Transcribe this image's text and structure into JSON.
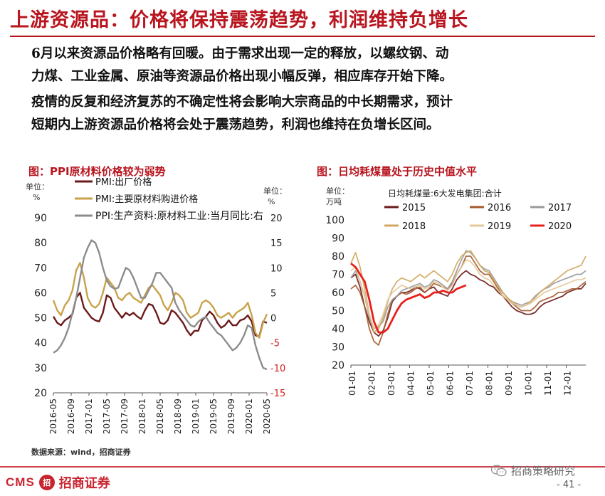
{
  "header": {
    "title": "上游资源品：价格将保持震荡趋势，利润维持负增长"
  },
  "body": {
    "para1": [
      "6月以来资源品价格略有回暖。由于需求出现一定的释放，以螺纹钢、动",
      "力煤、工业金属、原油等资源品价格出现小幅反弹，相应库存开始下降。"
    ],
    "para2": [
      "疫情的反复和经济复苏的不确定性将会影响大宗商品的中长期需求，预计",
      "短期内上游资源品价格将会处于震荡趋势，利润也维持在负增长区间。"
    ]
  },
  "chart_data": [
    {
      "type": "line",
      "title": "图：PPI原材料价格较为弱势",
      "left_unit": [
        "单位：",
        "%"
      ],
      "right_unit": [
        "单位：",
        "%"
      ],
      "left_ylim": [
        20,
        90
      ],
      "left_ticks": [
        "90",
        "80",
        "70",
        "60",
        "50",
        "40",
        "30",
        "20"
      ],
      "right_ylim": [
        -15,
        20
      ],
      "right_ticks": [
        "20",
        "15",
        "10",
        "5",
        "0",
        "-5",
        "-10",
        "-15"
      ],
      "x_ticks": [
        "2016-05",
        "2016-09",
        "2017-01",
        "2017-05",
        "2017-09",
        "2018-01",
        "2018-05",
        "2018-09",
        "2019-01",
        "2019-05",
        "2019-09",
        "2020-01",
        "2020-05"
      ],
      "series": [
        {
          "name": "PMI:出厂价格",
          "axis": "left",
          "color": "#6b1a1a",
          "values": [
            50.5,
            48,
            47,
            49,
            50,
            51.5,
            58,
            60,
            54,
            52,
            50,
            49,
            48.5,
            52,
            59,
            58,
            54,
            52,
            50,
            52,
            51,
            52,
            50.5,
            49.5,
            53,
            55.5,
            55,
            52,
            48,
            47.5,
            49,
            53,
            52,
            50,
            48,
            45,
            43,
            44.8,
            44.8,
            49,
            50.5,
            52.5,
            51,
            48,
            46,
            47,
            49,
            47,
            47,
            49,
            49.5,
            51,
            48.5,
            43,
            42.5,
            48.5,
            48
          ]
        },
        {
          "name": "PMI:主要原材料购进价格",
          "axis": "left",
          "color": "#c9a24b",
          "values": [
            57,
            53,
            51,
            55,
            57,
            61,
            69,
            72,
            66,
            58,
            55,
            54,
            55.5,
            60,
            66,
            64,
            62,
            58,
            57,
            59,
            60,
            58,
            57,
            56,
            59,
            62,
            63,
            61,
            59,
            55,
            53,
            56,
            60,
            59,
            57,
            52,
            50,
            51,
            52,
            56,
            57,
            56,
            54,
            51,
            50,
            51,
            52,
            50,
            52,
            53,
            54,
            56,
            51,
            44,
            42,
            48,
            51.5
          ]
        },
        {
          "name": "PPI:生产资料:原材料工业:当月同比:右",
          "axis": "right",
          "color": "#8c8c8c",
          "values": [
            -7,
            -6.5,
            -5.5,
            -4,
            -2,
            1,
            4,
            8,
            12,
            14,
            15.5,
            15,
            13,
            10,
            7.5,
            6.3,
            5.8,
            6,
            8,
            10,
            9.5,
            8,
            6,
            4,
            4,
            5.5,
            7,
            9,
            9,
            8,
            7,
            6,
            3,
            1.5,
            0.5,
            -0.5,
            -1.5,
            -1.8,
            -0.8,
            -0.2,
            0.2,
            -1,
            -2,
            -3,
            -3.5,
            -4.5,
            -5.5,
            -6.5,
            -6,
            -5,
            -3.5,
            -1.5,
            -2,
            -5.5,
            -8,
            -10,
            -10.3
          ]
        }
      ]
    },
    {
      "type": "line",
      "title": "图：日均耗煤量处于历史中值水平",
      "unit": [
        "单位：",
        "万吨"
      ],
      "subtitle": "日均耗煤量:6大发电集团:合计",
      "ylim": [
        20,
        100
      ],
      "y_ticks": [
        "100",
        "90",
        "80",
        "70",
        "60",
        "50",
        "40",
        "30",
        "20"
      ],
      "x_ticks": [
        "01-01",
        "02-01",
        "03-01",
        "04-01",
        "05-01",
        "06-01",
        "07-01",
        "08-01",
        "09-01",
        "10-01",
        "11-01",
        "12-01"
      ],
      "series": [
        {
          "name": "2015",
          "color": "#6b1a1a",
          "values": [
            68,
            70,
            63,
            52,
            44,
            38,
            36,
            39,
            46,
            55,
            58,
            60,
            60,
            61,
            63,
            62,
            60,
            62,
            63,
            60,
            59,
            58,
            62,
            67,
            70,
            72,
            70,
            69,
            67,
            66,
            64,
            63,
            60,
            58,
            55,
            52,
            50,
            49,
            48,
            48,
            49,
            52,
            54,
            55,
            56,
            57,
            58,
            60,
            61,
            62,
            62,
            65
          ]
        },
        {
          "name": "2016",
          "color": "#a65a2e",
          "values": [
            62,
            64,
            60,
            52,
            40,
            33,
            31,
            38,
            48,
            56,
            58,
            60,
            59,
            60,
            62,
            63,
            60,
            62,
            65,
            64,
            63,
            62,
            65,
            70,
            74,
            80,
            80,
            76,
            72,
            70,
            70,
            66,
            62,
            58,
            56,
            54,
            52,
            50,
            50,
            50,
            52,
            55,
            56,
            57,
            58,
            60,
            60,
            61,
            62,
            62,
            64,
            66
          ]
        },
        {
          "name": "2017",
          "color": "#9a9a9a",
          "values": [
            68,
            72,
            66,
            58,
            46,
            40,
            41,
            44,
            52,
            56,
            58,
            61,
            62,
            63,
            64,
            65,
            63,
            64,
            67,
            66,
            64,
            62,
            66,
            72,
            78,
            83,
            82,
            79,
            75,
            73,
            72,
            68,
            64,
            60,
            57,
            55,
            54,
            53,
            54,
            55,
            58,
            60,
            62,
            63,
            65,
            66,
            67,
            68,
            69,
            70,
            70,
            72
          ]
        },
        {
          "name": "2018",
          "color": "#d2a860",
          "values": [
            76,
            82,
            74,
            62,
            48,
            38,
            40,
            46,
            55,
            62,
            66,
            68,
            67,
            66,
            68,
            70,
            68,
            70,
            72,
            70,
            68,
            66,
            70,
            76,
            80,
            82,
            83,
            79,
            75,
            72,
            71,
            67,
            63,
            60,
            57,
            55,
            53,
            52,
            53,
            55,
            57,
            60,
            62,
            64,
            66,
            68,
            70,
            72,
            73,
            74,
            75,
            80
          ]
        },
        {
          "name": "2019",
          "color": "#e4c99a",
          "values": [
            72,
            74,
            66,
            58,
            48,
            40,
            42,
            48,
            56,
            60,
            62,
            64,
            63,
            62,
            63,
            64,
            62,
            63,
            66,
            65,
            63,
            61,
            64,
            70,
            74,
            78,
            77,
            74,
            70,
            68,
            67,
            64,
            61,
            58,
            56,
            54,
            53,
            52,
            53,
            54,
            56,
            58,
            60,
            61,
            62,
            63,
            64,
            65,
            66,
            67,
            67,
            68
          ]
        },
        {
          "name": "2020",
          "color": "#e8201c",
          "values": [
            76,
            74,
            70,
            66,
            56,
            44,
            38,
            38,
            40,
            45,
            50,
            54,
            56,
            57,
            58,
            59,
            57,
            58,
            60,
            60,
            61,
            60,
            60,
            62,
            63,
            64
          ]
        }
      ]
    }
  ],
  "source_note": "数据来源：wind，招商证券",
  "footer": {
    "logo_cms": "CMS",
    "logo_mark": "招",
    "logo_cn": "招商证券",
    "wechat_account": "招商策略研究",
    "page_number": "- 41 -"
  }
}
